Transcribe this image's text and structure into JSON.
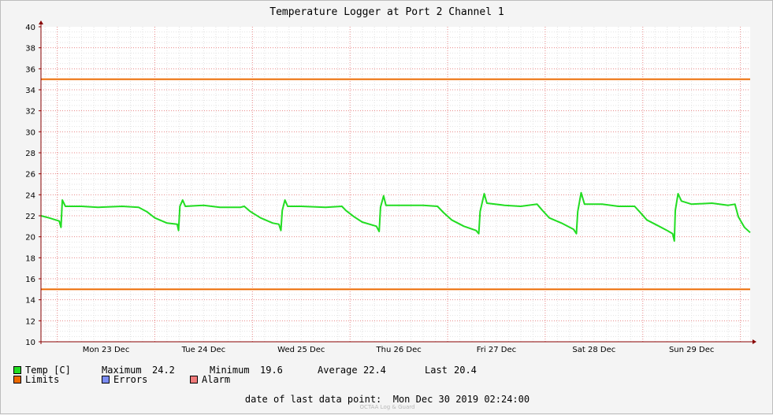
{
  "chart_data": {
    "type": "line",
    "title": "Temperature Logger at Port 2 Channel 1",
    "xlabel": "",
    "ylabel": "",
    "ylim": [
      10,
      40
    ],
    "yticks": [
      "40",
      "38",
      "36",
      "34",
      "32",
      "30",
      "28",
      "26",
      "24",
      "22",
      "20",
      "18",
      "16",
      "14",
      "12",
      "10"
    ],
    "xlim": [
      "2019-12-22 20:00",
      "2019-12-30 02:24"
    ],
    "xtick_labels": [
      "Mon 23 Dec",
      "Tue 24 Dec",
      "Wed 25 Dec",
      "Thu 26 Dec",
      "Fri 27 Dec",
      "Sat 28 Dec",
      "Sun 29 Dec"
    ],
    "grid": true,
    "series": [
      {
        "name": "Temp [C]",
        "color": "#22dd22",
        "points": [
          [
            "2019-12-22 20:00",
            22.0
          ],
          [
            "2019-12-22 22:00",
            21.8
          ],
          [
            "2019-12-23 00:30",
            21.5
          ],
          [
            "2019-12-23 00:55",
            20.9
          ],
          [
            "2019-12-23 01:15",
            23.5
          ],
          [
            "2019-12-23 02:00",
            22.9
          ],
          [
            "2019-12-23 06:00",
            22.9
          ],
          [
            "2019-12-23 10:00",
            22.8
          ],
          [
            "2019-12-23 16:00",
            22.9
          ],
          [
            "2019-12-23 20:00",
            22.8
          ],
          [
            "2019-12-23 22:00",
            22.4
          ],
          [
            "2019-12-24 00:00",
            21.8
          ],
          [
            "2019-12-24 03:00",
            21.3
          ],
          [
            "2019-12-24 05:30",
            21.2
          ],
          [
            "2019-12-24 05:50",
            20.6
          ],
          [
            "2019-12-24 06:10",
            22.9
          ],
          [
            "2019-12-24 06:50",
            23.5
          ],
          [
            "2019-12-24 07:30",
            22.9
          ],
          [
            "2019-12-24 12:00",
            23.0
          ],
          [
            "2019-12-24 16:00",
            22.8
          ],
          [
            "2019-12-24 21:00",
            22.8
          ],
          [
            "2019-12-24 22:00",
            22.9
          ],
          [
            "2019-12-24 23:30",
            22.4
          ],
          [
            "2019-12-25 02:00",
            21.8
          ],
          [
            "2019-12-25 05:00",
            21.3
          ],
          [
            "2019-12-25 06:30",
            21.2
          ],
          [
            "2019-12-25 07:00",
            20.6
          ],
          [
            "2019-12-25 07:20",
            22.5
          ],
          [
            "2019-12-25 08:00",
            23.5
          ],
          [
            "2019-12-25 08:40",
            22.9
          ],
          [
            "2019-12-25 12:00",
            22.9
          ],
          [
            "2019-12-25 18:00",
            22.8
          ],
          [
            "2019-12-25 22:00",
            22.9
          ],
          [
            "2019-12-25 23:00",
            22.5
          ],
          [
            "2019-12-26 01:00",
            21.9
          ],
          [
            "2019-12-26 03:00",
            21.4
          ],
          [
            "2019-12-26 06:30",
            21.0
          ],
          [
            "2019-12-26 07:10",
            20.5
          ],
          [
            "2019-12-26 07:30",
            22.8
          ],
          [
            "2019-12-26 08:15",
            23.9
          ],
          [
            "2019-12-26 08:50",
            23.0
          ],
          [
            "2019-12-26 13:00",
            23.0
          ],
          [
            "2019-12-26 18:00",
            23.0
          ],
          [
            "2019-12-26 21:30",
            22.9
          ],
          [
            "2019-12-26 23:00",
            22.3
          ],
          [
            "2019-12-27 01:00",
            21.6
          ],
          [
            "2019-12-27 04:00",
            21.0
          ],
          [
            "2019-12-27 07:00",
            20.6
          ],
          [
            "2019-12-27 07:40",
            20.3
          ],
          [
            "2019-12-27 08:00",
            22.4
          ],
          [
            "2019-12-27 09:00",
            24.1
          ],
          [
            "2019-12-27 09:40",
            23.2
          ],
          [
            "2019-12-27 14:00",
            23.0
          ],
          [
            "2019-12-27 18:00",
            22.9
          ],
          [
            "2019-12-27 22:00",
            23.1
          ],
          [
            "2019-12-27 23:20",
            22.5
          ],
          [
            "2019-12-28 01:00",
            21.8
          ],
          [
            "2019-12-28 04:00",
            21.3
          ],
          [
            "2019-12-28 07:00",
            20.7
          ],
          [
            "2019-12-28 07:40",
            20.3
          ],
          [
            "2019-12-28 08:00",
            22.4
          ],
          [
            "2019-12-28 08:50",
            24.2
          ],
          [
            "2019-12-28 09:40",
            23.1
          ],
          [
            "2019-12-28 14:00",
            23.1
          ],
          [
            "2019-12-28 18:00",
            22.9
          ],
          [
            "2019-12-28 22:00",
            22.9
          ],
          [
            "2019-12-28 23:10",
            22.4
          ],
          [
            "2019-12-29 01:00",
            21.6
          ],
          [
            "2019-12-29 04:00",
            21.0
          ],
          [
            "2019-12-29 06:00",
            20.6
          ],
          [
            "2019-12-29 07:20",
            20.3
          ],
          [
            "2019-12-29 07:45",
            19.6
          ],
          [
            "2019-12-29 08:00",
            22.5
          ],
          [
            "2019-12-29 08:40",
            24.1
          ],
          [
            "2019-12-29 09:30",
            23.4
          ],
          [
            "2019-12-29 12:00",
            23.1
          ],
          [
            "2019-12-29 17:00",
            23.2
          ],
          [
            "2019-12-29 21:00",
            23.0
          ],
          [
            "2019-12-29 22:40",
            23.1
          ],
          [
            "2019-12-29 23:30",
            21.9
          ],
          [
            "2019-12-30 01:00",
            20.9
          ],
          [
            "2019-12-30 02:24",
            20.4
          ]
        ]
      },
      {
        "name": "Limits",
        "color": "#ec6a00",
        "values": [
          35,
          15
        ]
      },
      {
        "name": "Errors",
        "color": "#7b8cf2"
      },
      {
        "name": "Alarm",
        "color": "#f07a7a"
      }
    ]
  },
  "legend": {
    "temp_label": "Temp [C]",
    "max_label": "Maximum",
    "max_value": "24.2",
    "min_label": "Minimum",
    "min_value": "19.6",
    "avg_label": "Average",
    "avg_value": "22.4",
    "last_label": "Last",
    "last_value": "20.4",
    "limits_label": "Limits",
    "errors_label": "Errors",
    "alarm_label": "Alarm"
  },
  "footer": {
    "last_point_label": "date of last data point:",
    "last_point_value": "Mon Dec 30 2019 02:24:00",
    "credit": "OCTAA Log & Guard"
  },
  "colors": {
    "temp": "#22dd22",
    "limits": "#ec6a00",
    "errors": "#7b8cf2",
    "alarm": "#f07a7a",
    "plot_bg": "#ffffff",
    "grid_minor": "#e2e2e2",
    "grid_major": "#e88888",
    "axis": "#880000"
  }
}
